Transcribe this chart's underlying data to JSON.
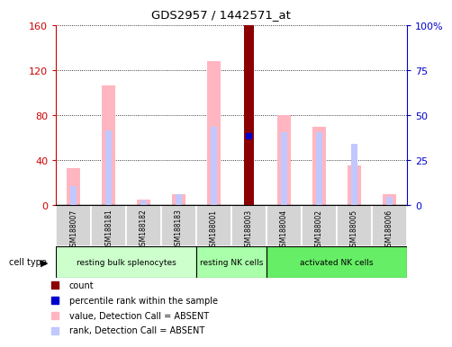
{
  "title": "GDS2957 / 1442571_at",
  "samples": [
    "GSM188007",
    "GSM188181",
    "GSM188182",
    "GSM188183",
    "GSM188001",
    "GSM188003",
    "GSM188004",
    "GSM188002",
    "GSM188005",
    "GSM188006"
  ],
  "value_absent": [
    33,
    107,
    5,
    10,
    128,
    0,
    80,
    70,
    35,
    10
  ],
  "rank_absent": [
    17,
    67,
    4,
    10,
    70,
    0,
    65,
    65,
    55,
    7
  ],
  "count_value": [
    0,
    0,
    0,
    0,
    0,
    160,
    0,
    0,
    0,
    0
  ],
  "percentile_rank": [
    0,
    0,
    0,
    0,
    0,
    62,
    0,
    0,
    0,
    0
  ],
  "ylim_left": [
    0,
    160
  ],
  "ylim_right": [
    0,
    100
  ],
  "yticks_left": [
    0,
    40,
    80,
    120,
    160
  ],
  "yticks_right": [
    0,
    25,
    50,
    75,
    100
  ],
  "ytick_labels_right": [
    "0",
    "25",
    "50",
    "75",
    "100%"
  ],
  "value_color": "#ffb6c1",
  "rank_color": "#c0c8ff",
  "count_color": "#8b0000",
  "percentile_color": "#0000cc",
  "axis_color_left": "#cc0000",
  "axis_color_right": "#0000cc",
  "cell_types": [
    {
      "label": "resting bulk splenocytes",
      "xstart": 0,
      "xend": 4,
      "color": "#ccffcc"
    },
    {
      "label": "resting NK cells",
      "xstart": 4,
      "xend": 6,
      "color": "#aaffaa"
    },
    {
      "label": "activated NK cells",
      "xstart": 6,
      "xend": 10,
      "color": "#66ee66"
    }
  ],
  "legend_items": [
    {
      "color": "#8b0000",
      "label": "count"
    },
    {
      "color": "#0000cc",
      "label": "percentile rank within the sample"
    },
    {
      "color": "#ffb6c1",
      "label": "value, Detection Call = ABSENT"
    },
    {
      "color": "#c0c8ff",
      "label": "rank, Detection Call = ABSENT"
    }
  ]
}
